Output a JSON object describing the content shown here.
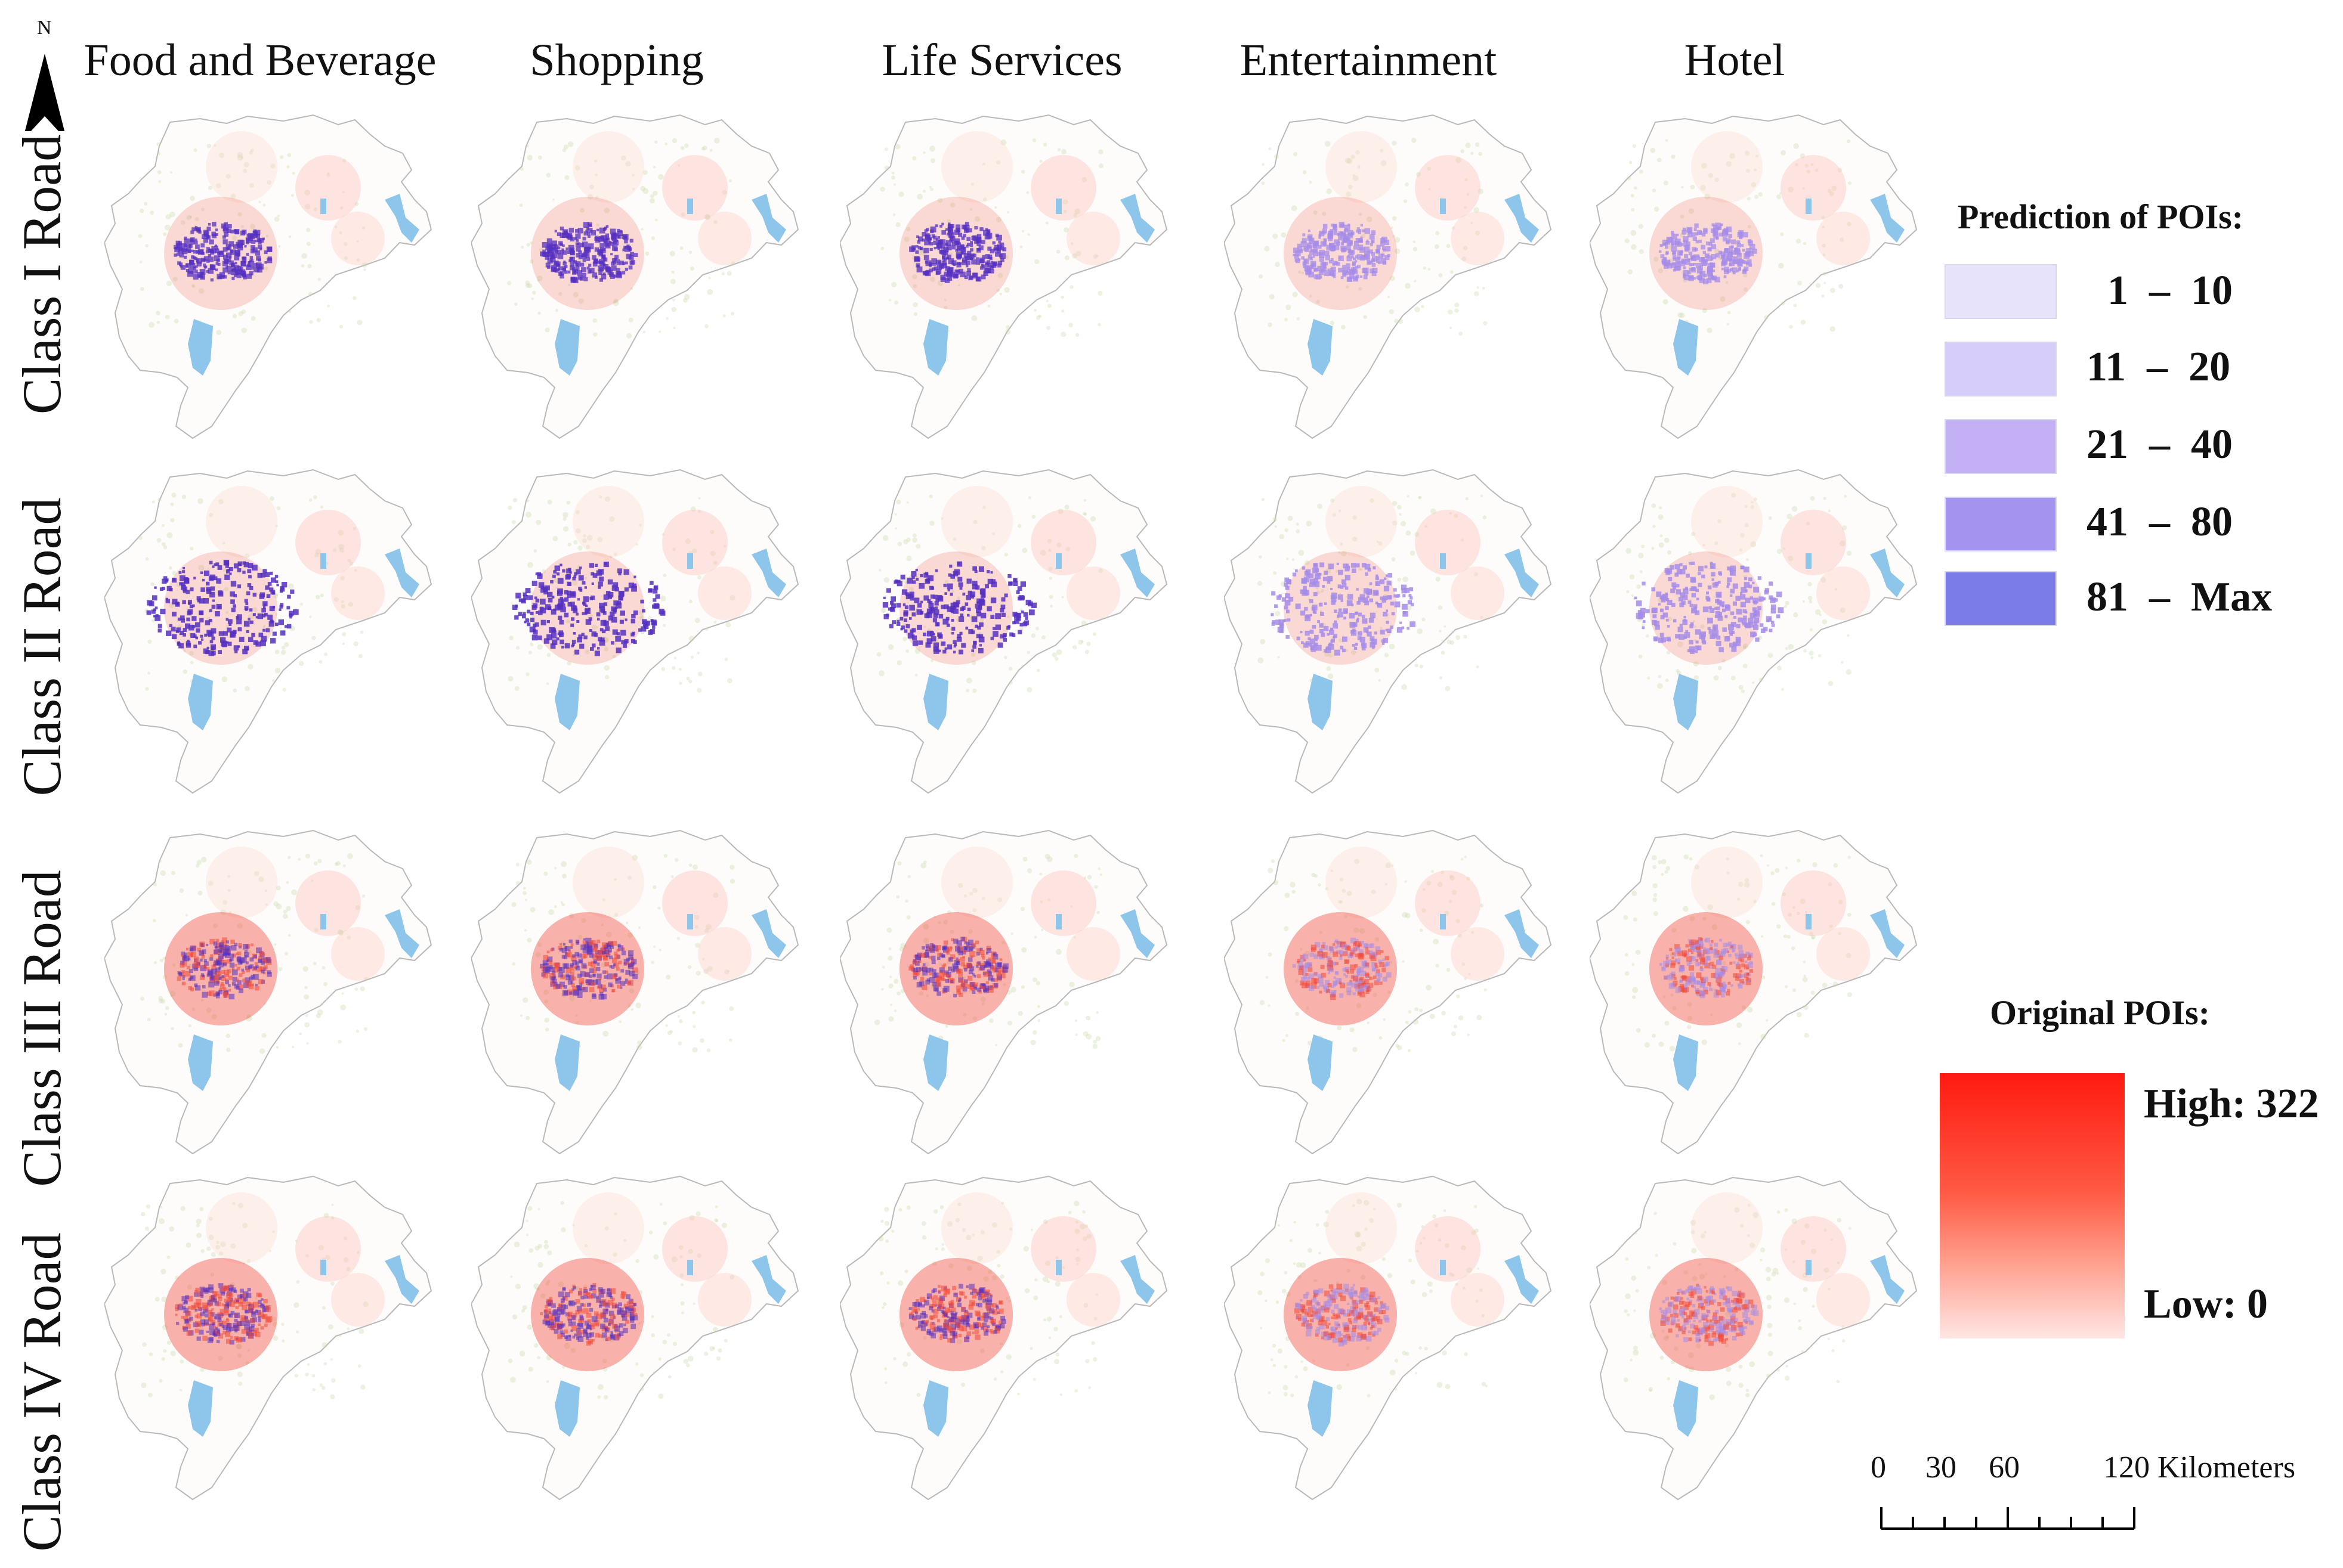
{
  "north_arrow": {
    "letter": "N"
  },
  "columns": [
    "Food and Beverage",
    "Shopping",
    "Life Services",
    "Entertainment",
    "Hotel"
  ],
  "rows": [
    "Class I Road",
    "Class II Road",
    "Class III Road",
    "Class IV Road"
  ],
  "legend_prediction": {
    "title": "Prediction of POIs:",
    "items": [
      {
        "label": "  1  –  10",
        "color": "#e6e3fb"
      },
      {
        "label": "11  –  20",
        "color": "#d6cdfa"
      },
      {
        "label": "21  –  40",
        "color": "#c4b1f5"
      },
      {
        "label": "41  –  80",
        "color": "#a594ef"
      },
      {
        "label": "81  –  Max",
        "color": "#7b7ce8"
      }
    ]
  },
  "legend_original": {
    "title": "Original  POIs:",
    "high_label": "High: 322",
    "low_label": "Low: 0",
    "high_color": "#ff1a10",
    "low_color": "#ffe6e4"
  },
  "scale_bar": {
    "ticks": [
      "0",
      "30",
      "60",
      "120 Kilometers"
    ]
  },
  "colors": {
    "water": "#8ec5ea",
    "boundary": "#b9b9b9",
    "poi_red": "#f04a3a",
    "poi_purple": "#5530c0"
  }
}
